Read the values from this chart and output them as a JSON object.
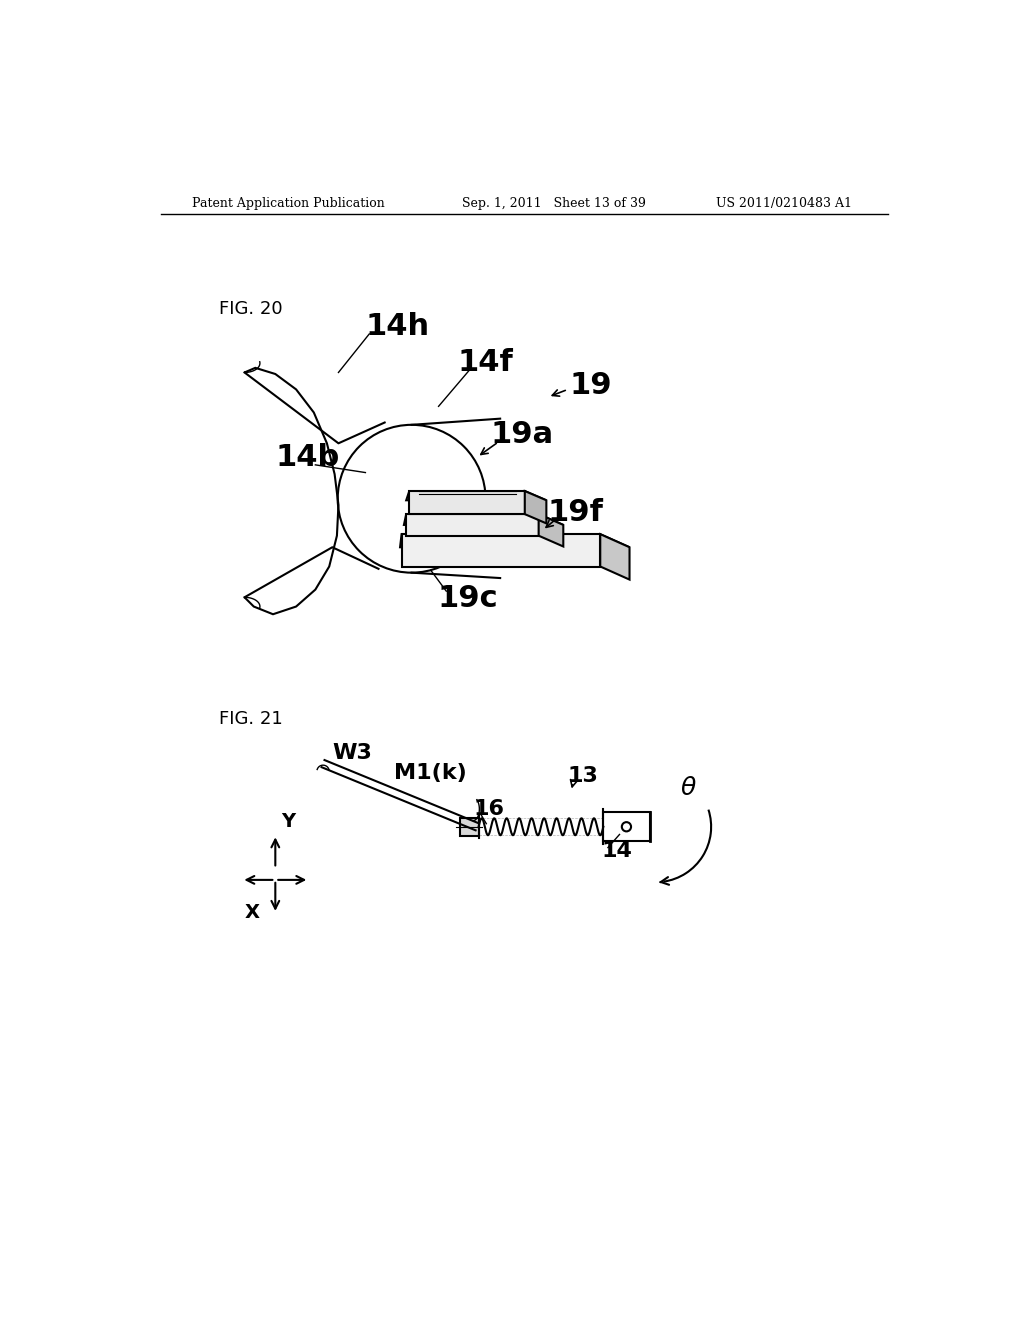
{
  "bg_color": "#ffffff",
  "header_left": "Patent Application Publication",
  "header_mid": "Sep. 1, 2011   Sheet 13 of 39",
  "header_right": "US 2011/0210483 A1",
  "fig20_label": "FIG. 20",
  "fig21_label": "FIG. 21",
  "labels_fig20": [
    "14h",
    "14f",
    "19",
    "14b",
    "19a",
    "19f",
    "19c"
  ],
  "labels_fig21": [
    "W3",
    "M1(k)",
    "16",
    "13",
    "14",
    "θ"
  ]
}
